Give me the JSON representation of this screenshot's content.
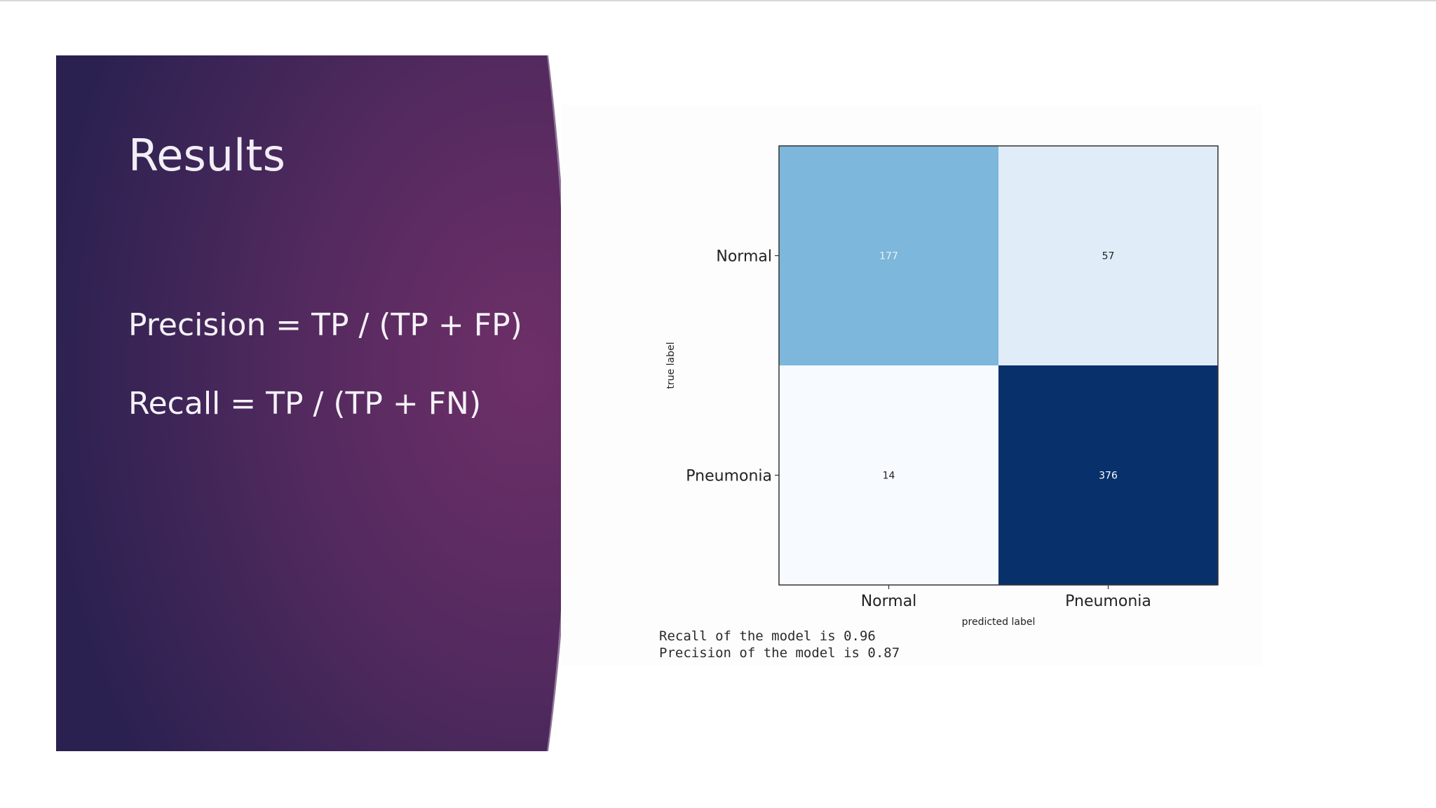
{
  "slide": {
    "title": "Results",
    "formulas": [
      "Precision = TP / (TP + FP)",
      "Recall = TP / (TP + FN)"
    ],
    "summary": [
      "Recall of the model is 0.96",
      "Precision of the model is 0.87"
    ]
  },
  "colors": {
    "panel_dark": "#2a2150",
    "panel_mid": "#4d2a5e",
    "panel_light": "#6c2f67",
    "title_text": "#f2eef6",
    "cell_low": "#f7fbff",
    "cell_high": "#08306b"
  },
  "chart_data": {
    "type": "heatmap",
    "title": "",
    "xlabel": "predicted label",
    "ylabel": "true label",
    "x_categories": [
      "Normal",
      "Pneumonia"
    ],
    "y_categories": [
      "Normal",
      "Pneumonia"
    ],
    "values": [
      [
        177,
        57
      ],
      [
        14,
        376
      ]
    ],
    "colormap": "Blues",
    "grid": false
  }
}
